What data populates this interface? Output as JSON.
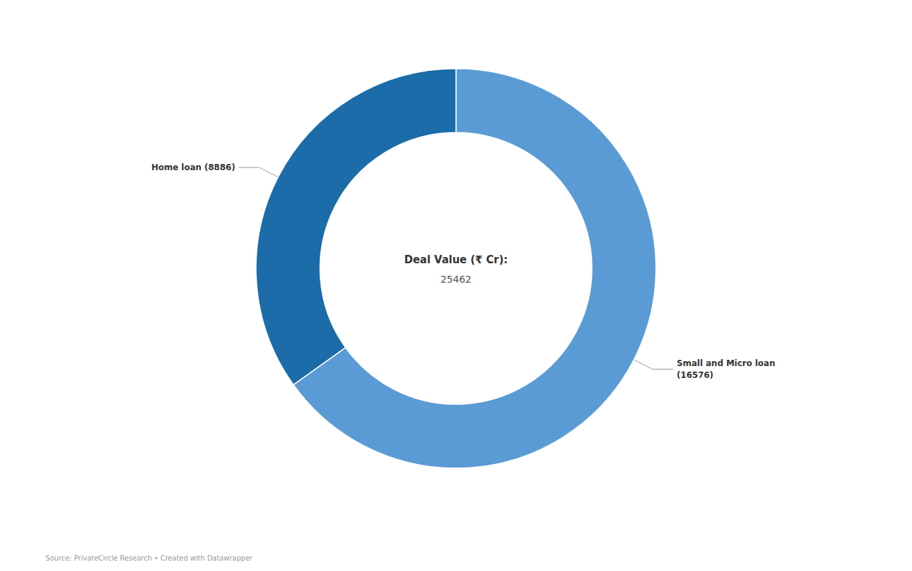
{
  "chart_data": {
    "type": "pie",
    "categories": [
      "Small and Micro loan",
      "Home loan"
    ],
    "values": [
      16576,
      8886
    ],
    "colors": [
      "#5B9BD5",
      "#1B6CA8"
    ],
    "center_label": "Deal Value (₹ Cr):",
    "center_value": "25462",
    "annotations": [
      "Small and Micro loan\n(16576)",
      "Home loan (8886)"
    ],
    "source": "Source: PrivateCircle Research • Created with Datawrapper"
  }
}
